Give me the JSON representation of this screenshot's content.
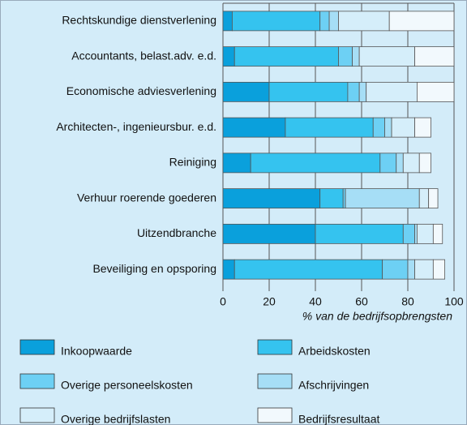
{
  "chart_data": {
    "type": "stacked-barh",
    "x_label": "% van de bedrijfsopbrengsten",
    "categories": [
      "Rechtskundige dienstverlening",
      "Accountants, belast.adv. e.d.",
      "Economische adviesverlening",
      "Architecten-, ingenieursbur. e.d.",
      "Reiniging",
      "Verhuur roerende goederen",
      "Uitzendbranche",
      "Beveiliging en opsporing"
    ],
    "series": [
      {
        "name": "Inkoopwaarde",
        "color": "#0aa0dc",
        "values": [
          4,
          5,
          20,
          27,
          12,
          42,
          40,
          5
        ]
      },
      {
        "name": "Arbeidskosten",
        "color": "#35c3ef",
        "values": [
          38,
          45,
          34,
          38,
          56,
          10,
          38,
          64
        ]
      },
      {
        "name": "Overige personeelskosten",
        "color": "#6dd0f4",
        "values": [
          4,
          6,
          5,
          5,
          7,
          1,
          5,
          11
        ]
      },
      {
        "name": "Afschrijvingen",
        "color": "#a6def6",
        "values": [
          4,
          3,
          3,
          3,
          3,
          32,
          1,
          3
        ]
      },
      {
        "name": "Overige bedrijfslasten",
        "color": "#d5eefa",
        "values": [
          22,
          24,
          22,
          10,
          7,
          4,
          7,
          8
        ]
      },
      {
        "name": "Bedrijfsresultaat",
        "color": "#f2f9fd",
        "values": [
          28,
          17,
          16,
          7,
          5,
          4,
          4,
          5
        ]
      }
    ],
    "xlim": [
      0,
      100
    ],
    "xticks": [
      0,
      20,
      40,
      60,
      80,
      100
    ],
    "grid": true
  }
}
